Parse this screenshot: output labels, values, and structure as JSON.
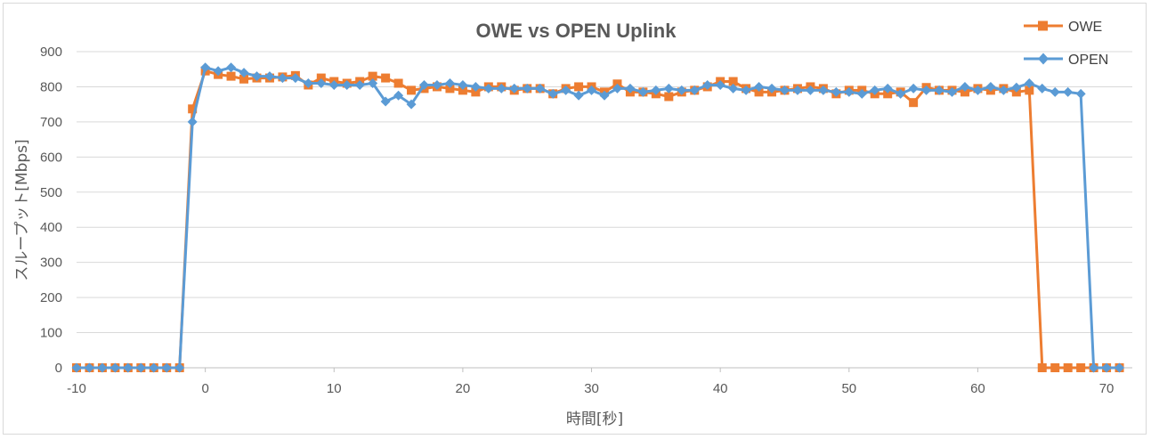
{
  "chart_data": {
    "type": "line",
    "title": "OWE vs OPEN   Uplink",
    "xlabel": "時間[秒]",
    "ylabel": "スループット[Mbps]",
    "xlim": [
      -10,
      72
    ],
    "ylim": [
      0,
      900
    ],
    "xticks": [
      "-10",
      "0",
      "10",
      "20",
      "30",
      "40",
      "50",
      "60",
      "70"
    ],
    "yticks": [
      "0",
      "100",
      "200",
      "300",
      "400",
      "500",
      "600",
      "700",
      "800",
      "900"
    ],
    "grid": "horizontal",
    "legend": "top-right",
    "colors": {
      "OWE": "#ED7D31",
      "OPEN": "#5B9BD5"
    },
    "x": [
      -10,
      -9,
      -8,
      -7,
      -6,
      -5,
      -4,
      -3,
      -2,
      -1,
      0,
      1,
      2,
      3,
      4,
      5,
      6,
      7,
      8,
      9,
      10,
      11,
      12,
      13,
      14,
      15,
      16,
      17,
      18,
      19,
      20,
      21,
      22,
      23,
      24,
      25,
      26,
      27,
      28,
      29,
      30,
      31,
      32,
      33,
      34,
      35,
      36,
      37,
      38,
      39,
      40,
      41,
      42,
      43,
      44,
      45,
      46,
      47,
      48,
      49,
      50,
      51,
      52,
      53,
      54,
      55,
      56,
      57,
      58,
      59,
      60,
      61,
      62,
      63,
      64,
      65,
      66,
      67,
      68,
      69,
      70,
      71
    ],
    "series": [
      {
        "name": "OWE",
        "marker": "square",
        "values": [
          0,
          0,
          0,
          0,
          0,
          0,
          0,
          0,
          0,
          737,
          845,
          835,
          830,
          822,
          825,
          825,
          828,
          832,
          805,
          825,
          815,
          810,
          815,
          830,
          825,
          810,
          790,
          795,
          800,
          795,
          790,
          785,
          800,
          800,
          790,
          795,
          795,
          780,
          795,
          800,
          800,
          785,
          808,
          785,
          785,
          780,
          772,
          785,
          790,
          800,
          815,
          815,
          795,
          785,
          785,
          790,
          795,
          800,
          795,
          780,
          790,
          790,
          780,
          780,
          785,
          755,
          798,
          790,
          790,
          785,
          795,
          790,
          795,
          785,
          790,
          0,
          0,
          0,
          0,
          0,
          0,
          0
        ]
      },
      {
        "name": "OPEN",
        "marker": "diamond",
        "values": [
          0,
          0,
          0,
          0,
          0,
          0,
          0,
          0,
          0,
          700,
          855,
          845,
          855,
          840,
          830,
          830,
          825,
          825,
          810,
          810,
          805,
          805,
          805,
          810,
          758,
          775,
          750,
          805,
          805,
          810,
          805,
          800,
          795,
          795,
          795,
          795,
          795,
          780,
          790,
          775,
          790,
          775,
          795,
          795,
          785,
          790,
          795,
          790,
          790,
          805,
          805,
          795,
          790,
          800,
          795,
          790,
          790,
          790,
          790,
          785,
          785,
          780,
          790,
          795,
          780,
          795,
          790,
          790,
          785,
          800,
          790,
          800,
          790,
          798,
          810,
          795,
          785,
          785,
          780,
          0,
          0,
          0
        ]
      }
    ]
  }
}
